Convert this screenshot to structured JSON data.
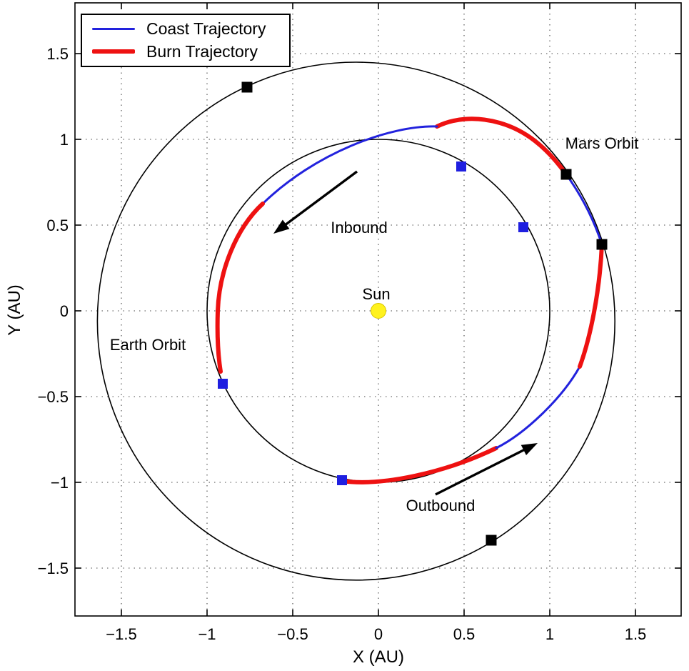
{
  "legend": {
    "items": [
      {
        "label": "Coast Trajectory",
        "color": "#2222dd",
        "line_width": 3
      },
      {
        "label": "Burn Trajectory",
        "color": "#ee1111",
        "line_width": 6
      }
    ]
  },
  "axes": {
    "x": {
      "label": "X (AU)",
      "tick_values": [
        -1.5,
        -1,
        -0.5,
        0,
        0.5,
        1,
        1.5
      ],
      "tick_labels": [
        "−1.5",
        "−1",
        "−0.5",
        "0",
        "0.5",
        "1",
        "1.5"
      ]
    },
    "y": {
      "label": "Y (AU)",
      "tick_values": [
        1.5,
        1,
        0.5,
        0,
        -0.5,
        -1,
        -1.5
      ],
      "tick_labels": [
        "1.5",
        "1",
        "0.5",
        "0",
        "−0.5",
        "−1",
        "−1.5"
      ]
    }
  },
  "colors": {
    "coast": "#2222dd",
    "burn": "#ee1111",
    "orbit": "#000000",
    "earth_marker": "#1f1fe0",
    "mars_marker": "#000000",
    "sun_fill": "#fff21e",
    "sun_edge": "#d8c500",
    "arrow": "#000000"
  },
  "chart_data": {
    "type": "line",
    "title": "",
    "xlabel": "X (AU)",
    "ylabel": "Y (AU)",
    "xlim": [
      -1.77,
      1.77
    ],
    "ylim": [
      -1.78,
      1.8
    ],
    "grid": "dotted",
    "legend_position": "top-left",
    "orbits": {
      "earth": {
        "label": "Earth Orbit",
        "center": [
          0,
          0
        ],
        "radius": 1.0
      },
      "mars": {
        "label": "Mars Orbit",
        "center": [
          -0.13,
          -0.06
        ],
        "radius": 1.51
      }
    },
    "sun": {
      "label": "Sun",
      "pos": [
        0,
        0
      ],
      "radius_px": 10.5
    },
    "earth_positions_au": [
      [
        -0.2125,
        -0.9875
      ],
      [
        0.4833,
        0.8417
      ],
      [
        0.8458,
        0.4875
      ],
      [
        -0.9083,
        -0.425
      ]
    ],
    "mars_positions_au": [
      [
        -0.7667,
        1.3042
      ],
      [
        1.0958,
        0.7958
      ],
      [
        1.3042,
        0.3875
      ],
      [
        0.6583,
        -1.3375
      ]
    ],
    "trajectory_segments": [
      {
        "type": "burn",
        "kind": "bezier",
        "points": [
          [
            -0.2125,
            -0.9917
          ],
          [
            0.0208,
            -1.025
          ],
          [
            0.3958,
            -0.9417
          ],
          [
            0.6875,
            -0.8
          ]
        ]
      },
      {
        "type": "coast",
        "kind": "bezier",
        "points": [
          [
            0.6875,
            -0.8
          ],
          [
            0.8542,
            -0.7167
          ],
          [
            1.0708,
            -0.5125
          ],
          [
            1.175,
            -0.325
          ]
        ]
      },
      {
        "type": "burn",
        "kind": "bezier",
        "points": [
          [
            1.175,
            -0.325
          ],
          [
            1.2375,
            -0.1542
          ],
          [
            1.2917,
            0.1125
          ],
          [
            1.3042,
            0.3875
          ]
        ]
      },
      {
        "type": "coast",
        "kind": "arc",
        "from": [
          1.3042,
          0.3875
        ],
        "to": [
          1.0958,
          0.7958
        ],
        "radius": 1.5,
        "sweep": 0
      },
      {
        "type": "burn",
        "kind": "bezier2",
        "points": [
          [
            1.0958,
            0.7958
          ],
          [
            0.9792,
            0.9583
          ],
          [
            0.8542,
            1.0542
          ],
          [
            0.7083,
            1.0958
          ],
          [
            0.5625,
            1.1375
          ],
          [
            0.4375,
            1.1208
          ],
          [
            0.3417,
            1.075
          ]
        ]
      },
      {
        "type": "coast",
        "kind": "bezier",
        "points": [
          [
            0.3417,
            1.075
          ],
          [
            0.0625,
            1.0833
          ],
          [
            -0.375,
            0.9167
          ],
          [
            -0.675,
            0.625
          ]
        ]
      },
      {
        "type": "burn",
        "kind": "bezier2",
        "points": [
          [
            -0.675,
            0.625
          ],
          [
            -0.8333,
            0.4792
          ],
          [
            -0.9292,
            0.2292
          ],
          [
            -0.9375,
            0.0
          ],
          [
            -0.9417,
            -0.125
          ],
          [
            -0.9375,
            -0.25
          ],
          [
            -0.9208,
            -0.3542
          ]
        ]
      }
    ],
    "arrows": [
      {
        "name": "inbound",
        "tail": [
          -0.125,
          0.8125
        ],
        "tip": [
          -0.6125,
          0.45
        ]
      },
      {
        "name": "outbound",
        "tail": [
          0.3333,
          -1.0708
        ],
        "tip": [
          0.9292,
          -0.7708
        ]
      }
    ],
    "labels": [
      {
        "name": "sun",
        "text": "Sun",
        "pos": [
          -0.0125,
          0.1
        ]
      },
      {
        "name": "inbound",
        "text": "Inbound",
        "pos": [
          -0.1125,
          0.4875
        ]
      },
      {
        "name": "outbound",
        "text": "Outbound",
        "pos": [
          0.3625,
          -1.1333
        ]
      },
      {
        "name": "mars-orbit",
        "text": "Mars Orbit",
        "pos": [
          1.3042,
          0.9792
        ]
      },
      {
        "name": "earth-orbit",
        "text": "Earth Orbit",
        "pos": [
          -1.3458,
          -0.1958
        ]
      }
    ]
  }
}
